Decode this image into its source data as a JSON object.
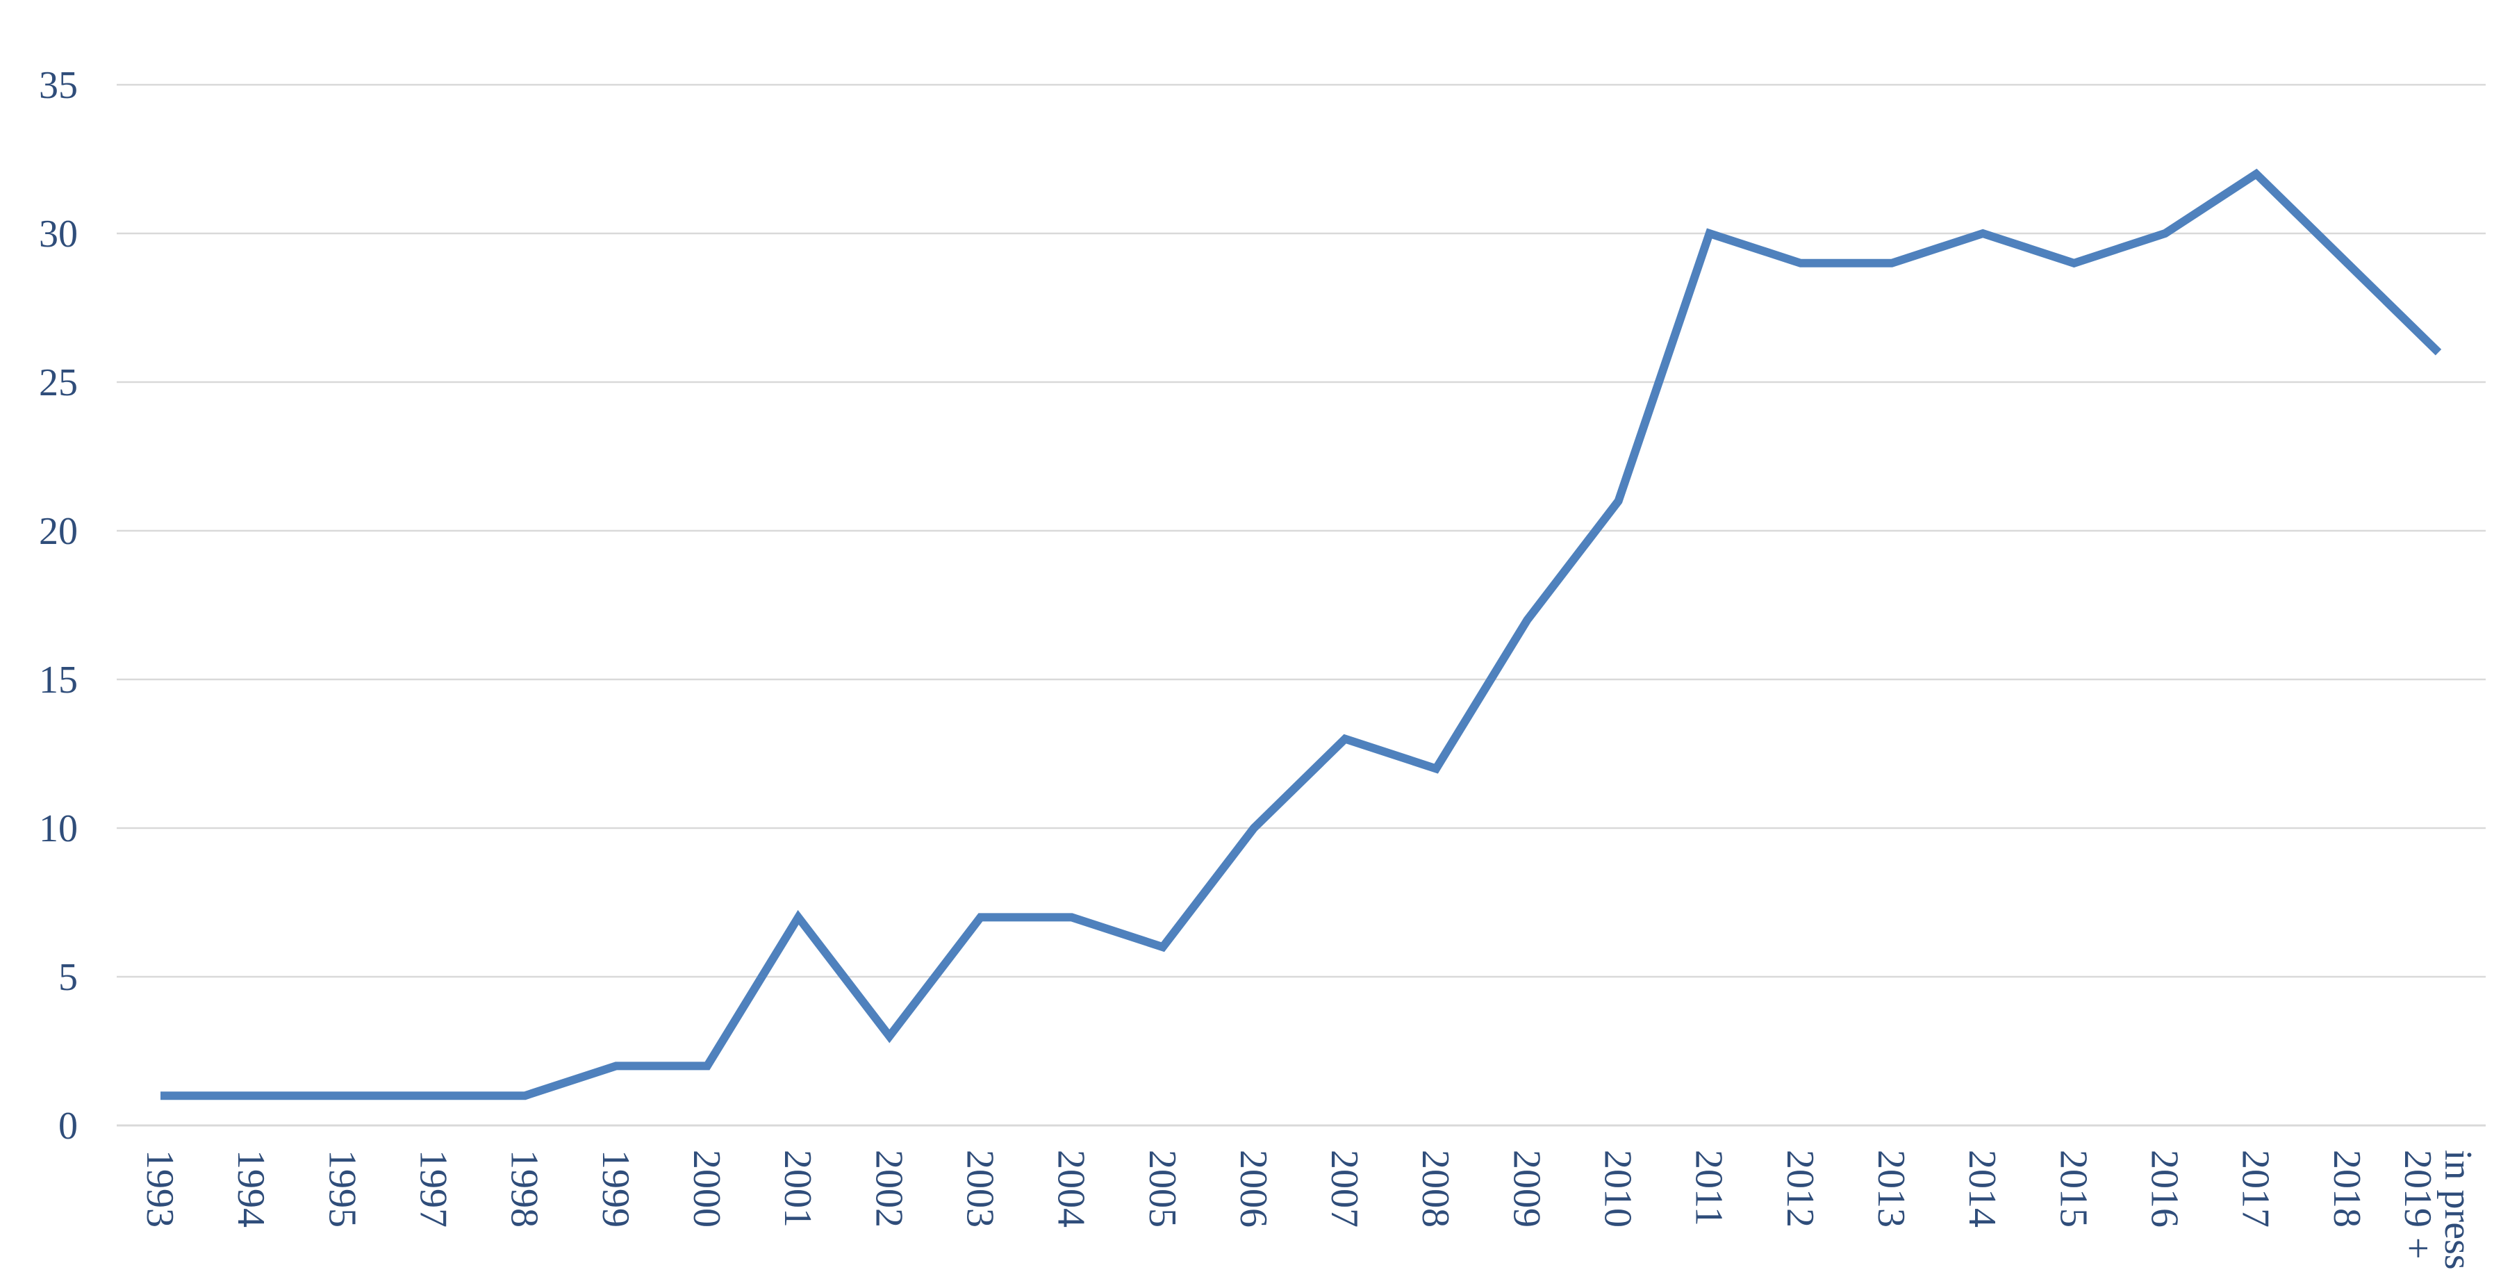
{
  "chart_data": {
    "type": "line",
    "title": "",
    "xlabel": "",
    "ylabel": "",
    "categories": [
      "1993",
      "1994",
      "1995",
      "1997",
      "1998",
      "1999",
      "2000",
      "2001",
      "2002",
      "2003",
      "2004",
      "2005",
      "2006",
      "2007",
      "2008",
      "2009",
      "2010",
      "2011",
      "2012",
      "2013",
      "2014",
      "2015",
      "2016",
      "2017",
      "2018",
      "2019 + in press"
    ],
    "category_lines": [
      [
        "1993"
      ],
      [
        "1994"
      ],
      [
        "1995"
      ],
      [
        "1997"
      ],
      [
        "1998"
      ],
      [
        "1999"
      ],
      [
        "2000"
      ],
      [
        "2001"
      ],
      [
        "2002"
      ],
      [
        "2003"
      ],
      [
        "2004"
      ],
      [
        "2005"
      ],
      [
        "2006"
      ],
      [
        "2007"
      ],
      [
        "2008"
      ],
      [
        "2009"
      ],
      [
        "2010"
      ],
      [
        "2011"
      ],
      [
        "2012"
      ],
      [
        "2013"
      ],
      [
        "2014"
      ],
      [
        "2015"
      ],
      [
        "2016"
      ],
      [
        "2017"
      ],
      [
        "2018"
      ],
      [
        "2019 +",
        "in press"
      ]
    ],
    "series": [
      {
        "values": [
          1,
          1,
          1,
          1,
          1,
          2,
          2,
          7,
          3,
          7,
          7,
          6,
          10,
          13,
          12,
          17,
          21,
          30,
          29,
          29,
          30,
          29,
          30,
          32,
          29,
          26
        ],
        "color": "#4f81bd"
      }
    ],
    "ylim": [
      0,
      35
    ],
    "yticks": [
      "0",
      "5",
      "10",
      "15",
      "20",
      "25",
      "30",
      "35"
    ],
    "grid": "horizontal",
    "legend": "none",
    "colors": {
      "grid": "#d9d9d9",
      "tick_text": "#2f4d7a",
      "series": "#4f81bd"
    }
  }
}
